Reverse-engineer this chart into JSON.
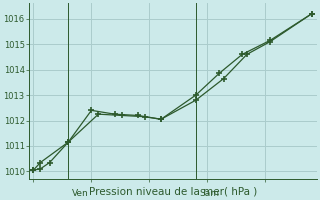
{
  "title": "Pression niveau de la mer( hPa )",
  "bg_color": "#cceaea",
  "grid_color": "#aacccc",
  "line_color": "#2d5a2d",
  "ylim": [
    1009.7,
    1016.6
  ],
  "yticks": [
    1010,
    1011,
    1012,
    1013,
    1014,
    1015,
    1016
  ],
  "s1_x": [
    0.0,
    0.3,
    0.7,
    1.5,
    2.8,
    3.8,
    4.8,
    5.5,
    7.0,
    8.2,
    9.2,
    10.2,
    12.0
  ],
  "s1_y": [
    1010.05,
    1010.1,
    1010.35,
    1011.15,
    1012.25,
    1012.2,
    1012.15,
    1012.05,
    1012.8,
    1013.65,
    1014.6,
    1015.1,
    1016.2
  ],
  "s2_x": [
    0.0,
    0.3,
    1.5,
    2.5,
    3.5,
    4.5,
    5.5,
    7.0,
    8.0,
    9.0,
    10.2,
    12.0
  ],
  "s2_y": [
    1010.05,
    1010.35,
    1011.15,
    1012.4,
    1012.25,
    1012.2,
    1012.05,
    1013.0,
    1013.85,
    1014.6,
    1015.15,
    1016.2
  ],
  "ven_x": 1.5,
  "sam_x": 7.0,
  "xlim": [
    -0.2,
    12.2
  ],
  "xlabel_fontsize": 7.5,
  "ytick_fontsize": 6,
  "day_fontsize": 6.5
}
